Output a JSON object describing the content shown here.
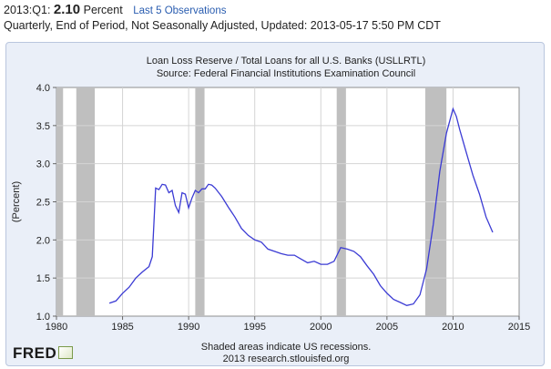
{
  "header": {
    "period": "2013:Q1:",
    "value": "2.10",
    "unit": "Percent",
    "link_label": "Last 5 Observations",
    "subtitle": "Quarterly, End of Period, Not Seasonally Adjusted, Updated: 2013-05-17 5:50 PM CDT"
  },
  "logo": {
    "text": "FRED"
  },
  "chart_data": {
    "type": "line",
    "title": "Loan Loss Reserve / Total Loans for all U.S. Banks (USLLRTL)",
    "subtitle": "Source: Federal Financial Institutions Examination Council",
    "xlabel": "",
    "ylabel": "(Percent)",
    "xlim": [
      1980,
      2015
    ],
    "ylim": [
      1.0,
      4.0
    ],
    "xticks": [
      1980,
      1985,
      1990,
      1995,
      2000,
      2005,
      2010,
      2015
    ],
    "yticks": [
      "1.0",
      "1.5",
      "2.0",
      "2.5",
      "3.0",
      "3.5",
      "4.0"
    ],
    "grid": true,
    "line_color": "#3b3bd4",
    "recession_color": "#bfbfbf",
    "recessions": [
      [
        1980.0,
        1980.5
      ],
      [
        1981.5,
        1982.9
      ],
      [
        1990.5,
        1991.2
      ],
      [
        2001.2,
        2001.9
      ],
      [
        2007.9,
        2009.5
      ]
    ],
    "footnote_line1": "Shaded areas indicate US recessions.",
    "footnote_line2": "2013 research.stlouisfed.org",
    "series": [
      {
        "x": [
          1984.0,
          1984.5,
          1985.0,
          1985.5,
          1986.0,
          1986.5,
          1987.0,
          1987.25,
          1987.5,
          1987.75,
          1988.0,
          1988.25,
          1988.5,
          1988.75,
          1989.0,
          1989.25,
          1989.5,
          1989.75,
          1990.0,
          1990.25,
          1990.5,
          1990.75,
          1991.0,
          1991.25,
          1991.5,
          1991.75,
          1992.0,
          1992.5,
          1993.0,
          1993.5,
          1994.0,
          1994.5,
          1995.0,
          1995.5,
          1996.0,
          1996.5,
          1997.0,
          1997.5,
          1998.0,
          1998.5,
          1999.0,
          1999.5,
          2000.0,
          2000.5,
          2001.0,
          2001.5,
          2002.0,
          2002.5,
          2003.0,
          2003.5,
          2004.0,
          2004.5,
          2005.0,
          2005.5,
          2006.0,
          2006.5,
          2007.0,
          2007.5,
          2008.0,
          2008.5,
          2009.0,
          2009.5,
          2010.0,
          2010.25,
          2010.5,
          2011.0,
          2011.5,
          2012.0,
          2012.5,
          2013.0
        ],
        "y": [
          1.17,
          1.2,
          1.3,
          1.38,
          1.5,
          1.58,
          1.65,
          1.78,
          2.68,
          2.66,
          2.73,
          2.72,
          2.62,
          2.65,
          2.45,
          2.36,
          2.62,
          2.6,
          2.42,
          2.55,
          2.65,
          2.62,
          2.67,
          2.67,
          2.73,
          2.72,
          2.68,
          2.57,
          2.43,
          2.3,
          2.15,
          2.06,
          2.0,
          1.97,
          1.88,
          1.85,
          1.82,
          1.8,
          1.8,
          1.75,
          1.7,
          1.72,
          1.68,
          1.68,
          1.72,
          1.9,
          1.88,
          1.85,
          1.78,
          1.66,
          1.55,
          1.4,
          1.3,
          1.22,
          1.18,
          1.14,
          1.16,
          1.28,
          1.62,
          2.2,
          2.9,
          3.4,
          3.72,
          3.62,
          3.45,
          3.15,
          2.85,
          2.6,
          2.3,
          2.1
        ]
      }
    ]
  }
}
